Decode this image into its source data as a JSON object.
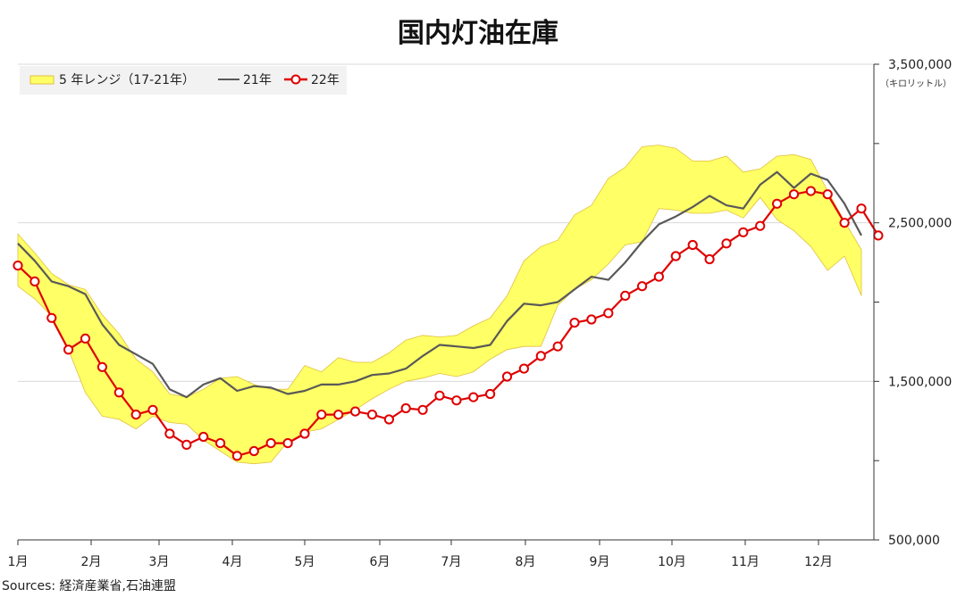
{
  "chart_data": {
    "type": "line",
    "title": "国内灯油在庫",
    "y_unit": "（キロリットル）",
    "source": "Sources: 経済産業省,石油連盟",
    "ylim": [
      500000,
      3500000
    ],
    "y_tick_labels": [
      "3,500,000",
      "2,500,000",
      "1,500,000",
      "500,000"
    ],
    "y_tick_values": [
      3500000,
      2500000,
      1500000,
      500000
    ],
    "x_tick_labels": [
      "1月",
      "2月",
      "3月",
      "4月",
      "5月",
      "6月",
      "7月",
      "8月",
      "9月",
      "10月",
      "11月",
      "12月"
    ],
    "grid": true,
    "legend": {
      "placement": "top-left",
      "entries": [
        "5 年レンジ（17-21年）",
        "21年",
        "22年"
      ]
    },
    "colors": {
      "range_fill": "#ffff66",
      "range_edge": "#e0c040",
      "line_21": "#595959",
      "line_22": "#e00000",
      "marker_fill": "#ffffff"
    },
    "series": [
      {
        "name": "5 年レンジ（17-21年）",
        "kind": "range",
        "upper": [
          2430000,
          2310000,
          2180000,
          2110000,
          2080000,
          1920000,
          1800000,
          1640000,
          1560000,
          1420000,
          1400000,
          1450000,
          1520000,
          1530000,
          1480000,
          1450000,
          1450000,
          1600000,
          1560000,
          1650000,
          1620000,
          1620000,
          1680000,
          1760000,
          1790000,
          1780000,
          1790000,
          1850000,
          1900000,
          2040000,
          2260000,
          2350000,
          2390000,
          2550000,
          2610000,
          2780000,
          2850000,
          2980000,
          2990000,
          2970000,
          2890000,
          2890000,
          2920000,
          2820000,
          2840000,
          2920000,
          2930000,
          2900000,
          2700000,
          2510000,
          2330000
        ],
        "lower": [
          2100000,
          2020000,
          1910000,
          1700000,
          1430000,
          1280000,
          1260000,
          1200000,
          1280000,
          1240000,
          1230000,
          1130000,
          1060000,
          990000,
          980000,
          990000,
          1120000,
          1180000,
          1200000,
          1260000,
          1320000,
          1390000,
          1450000,
          1500000,
          1520000,
          1550000,
          1530000,
          1560000,
          1640000,
          1700000,
          1720000,
          1720000,
          1980000,
          2080000,
          2140000,
          2240000,
          2360000,
          2380000,
          2590000,
          2580000,
          2560000,
          2560000,
          2580000,
          2530000,
          2660000,
          2520000,
          2450000,
          2350000,
          2200000,
          2290000,
          2040000
        ]
      },
      {
        "name": "21年",
        "kind": "line",
        "values": [
          2370000,
          2260000,
          2130000,
          2100000,
          2050000,
          1860000,
          1730000,
          1670000,
          1610000,
          1450000,
          1400000,
          1480000,
          1520000,
          1440000,
          1470000,
          1460000,
          1420000,
          1440000,
          1480000,
          1480000,
          1500000,
          1540000,
          1550000,
          1580000,
          1660000,
          1730000,
          1720000,
          1710000,
          1730000,
          1880000,
          1990000,
          1980000,
          2000000,
          2080000,
          2160000,
          2140000,
          2250000,
          2380000,
          2490000,
          2540000,
          2600000,
          2670000,
          2610000,
          2590000,
          2740000,
          2820000,
          2720000,
          2810000,
          2770000,
          2620000,
          2420000
        ]
      },
      {
        "name": "22年",
        "kind": "line_marker",
        "values": [
          2230000,
          2130000,
          1900000,
          1700000,
          1770000,
          1590000,
          1430000,
          1290000,
          1320000,
          1170000,
          1100000,
          1150000,
          1110000,
          1030000,
          1060000,
          1110000,
          1110000,
          1170000,
          1290000,
          1290000,
          1310000,
          1290000,
          1260000,
          1330000,
          1320000,
          1410000,
          1380000,
          1400000,
          1420000,
          1530000,
          1580000,
          1660000,
          1720000,
          1870000,
          1890000,
          1930000,
          2040000,
          2100000,
          2160000,
          2290000,
          2360000,
          2270000,
          2370000,
          2440000,
          2480000,
          2620000,
          2680000,
          2700000,
          2680000,
          2500000,
          2590000,
          2420000
        ]
      }
    ]
  }
}
